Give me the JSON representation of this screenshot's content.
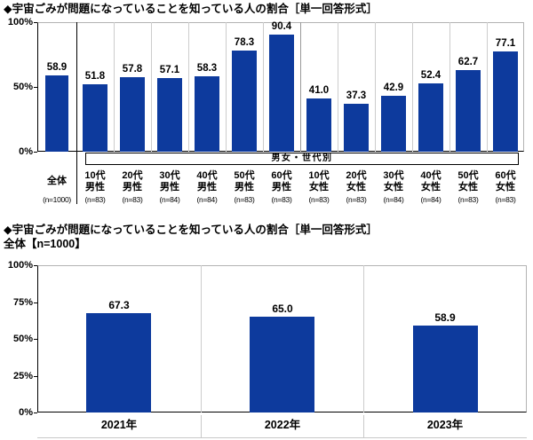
{
  "colors": {
    "bar": "#0d3a9d",
    "axis": "#000000",
    "plot_border": "#b3b3b3",
    "gridline": "#cccccc",
    "gender_divider": "#9a9a9a",
    "zentai_divider": "#000000",
    "label_row_border": "#c9c9c9"
  },
  "chart_data": [
    {
      "type": "bar",
      "title": "◆宇宙ごみが問題になっていることを知っている人の割合［単一回答形式］",
      "group_label": "男女・世代別",
      "ylim": [
        0,
        100
      ],
      "y_ticks": [
        "100%",
        "50%",
        "0%"
      ],
      "legend": "none",
      "grid": "vertical column dividers only",
      "bars": [
        {
          "label": "全体",
          "n": "(n=1000)",
          "value": 58.9
        },
        {
          "age": "10代",
          "gender": "男性",
          "n": "(n=83)",
          "value": 51.8
        },
        {
          "age": "20代",
          "gender": "男性",
          "n": "(n=83)",
          "value": 57.8
        },
        {
          "age": "30代",
          "gender": "男性",
          "n": "(n=84)",
          "value": 57.1
        },
        {
          "age": "40代",
          "gender": "男性",
          "n": "(n=84)",
          "value": 58.3
        },
        {
          "age": "50代",
          "gender": "男性",
          "n": "(n=83)",
          "value": 78.3
        },
        {
          "age": "60代",
          "gender": "男性",
          "n": "(n=83)",
          "value": 90.4
        },
        {
          "age": "10代",
          "gender": "女性",
          "n": "(n=83)",
          "value": 41.0
        },
        {
          "age": "20代",
          "gender": "女性",
          "n": "(n=83)",
          "value": 37.3
        },
        {
          "age": "30代",
          "gender": "女性",
          "n": "(n=84)",
          "value": 42.9
        },
        {
          "age": "40代",
          "gender": "女性",
          "n": "(n=84)",
          "value": 52.4
        },
        {
          "age": "50代",
          "gender": "女性",
          "n": "(n=83)",
          "value": 62.7
        },
        {
          "age": "60代",
          "gender": "女性",
          "n": "(n=83)",
          "value": 77.1
        }
      ]
    },
    {
      "type": "bar",
      "title": "◆宇宙ごみが問題になっていることを知っている人の割合［単一回答形式］",
      "subtitle": "全体【n=1000】",
      "ylim": [
        0,
        100
      ],
      "y_ticks": [
        "100%",
        "75%",
        "50%",
        "25%",
        "0%"
      ],
      "legend": "none",
      "grid": "vertical column dividers only",
      "bars": [
        {
          "label": "2021年",
          "value": 67.3
        },
        {
          "label": "2022年",
          "value": 65.0
        },
        {
          "label": "2023年",
          "value": 58.9
        }
      ]
    }
  ]
}
